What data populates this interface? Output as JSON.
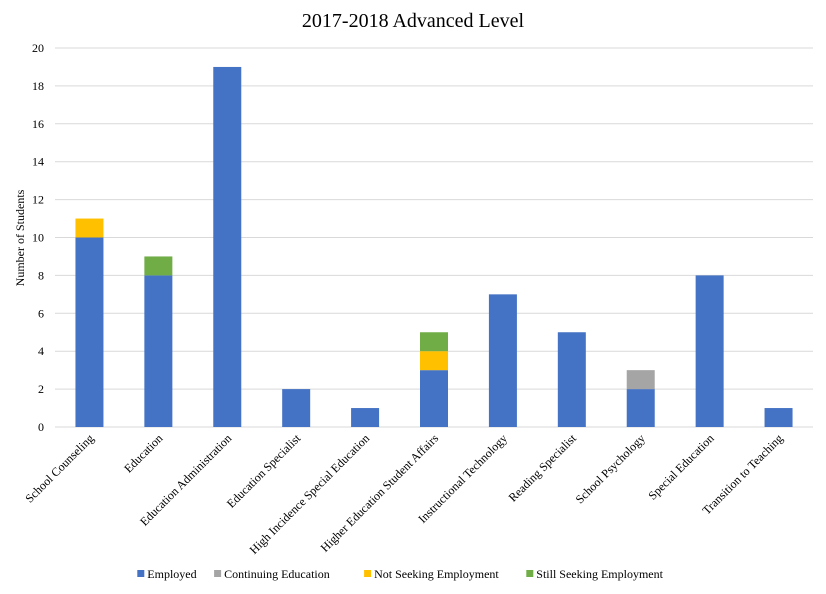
{
  "chart_data": {
    "type": "bar",
    "stacked": true,
    "title": "2017-2018 Advanced Level",
    "xlabel": "",
    "ylabel": "Number of Students",
    "ylim": [
      0,
      20
    ],
    "yticks": [
      0,
      2,
      4,
      6,
      8,
      10,
      12,
      14,
      16,
      18,
      20
    ],
    "grid": true,
    "legend_position": "bottom",
    "categories": [
      "School Counseling",
      "Education",
      "Education Administration",
      "Education Specialist",
      "High Incidence Special Education",
      "Higher Education Student Affairs",
      "Instructional Technology",
      "Reading Specialist",
      "School Psychology",
      "Special Education",
      "Transition to Teaching"
    ],
    "series": [
      {
        "name": "Employed",
        "color": "#4472c4",
        "values": [
          10,
          8,
          19,
          2,
          1,
          3,
          7,
          5,
          2,
          8,
          1
        ]
      },
      {
        "name": "Continuing Education",
        "color": "#a5a5a5",
        "values": [
          0,
          0,
          0,
          0,
          0,
          0,
          0,
          0,
          1,
          0,
          0
        ]
      },
      {
        "name": "Not Seeking Employment",
        "color": "#ffc000",
        "values": [
          1,
          0,
          0,
          0,
          0,
          1,
          0,
          0,
          0,
          0,
          0
        ]
      },
      {
        "name": "Still Seeking Employment",
        "color": "#70ad47",
        "values": [
          0,
          1,
          0,
          0,
          0,
          1,
          0,
          0,
          0,
          0,
          0
        ]
      }
    ]
  }
}
